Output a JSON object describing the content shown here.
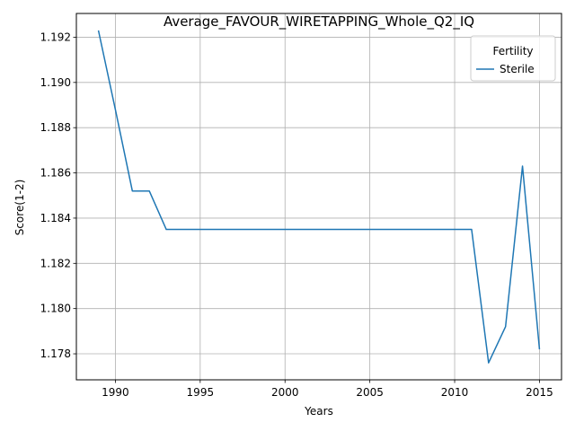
{
  "chart_data": {
    "type": "line",
    "title": "Average_FAVOUR_WIRETAPPING_Whole_Q2_IQ",
    "xlabel": "Years",
    "ylabel": "Score(1-2)",
    "xlim": [
      1987.7,
      1986.7
    ],
    "ylim": [
      1.17685,
      1.19305
    ],
    "xticks": [
      1990,
      1995,
      2000,
      2005,
      2010,
      2015
    ],
    "xtick_labels": [
      "1990",
      "1995",
      "2000",
      "2005",
      "2010",
      "2015"
    ],
    "yticks": [
      1.178,
      1.18,
      1.182,
      1.184,
      1.186,
      1.188,
      1.19,
      1.192
    ],
    "ytick_labels": [
      "1.178",
      "1.180",
      "1.182",
      "1.184",
      "1.186",
      "1.188",
      "1.190",
      "1.192"
    ],
    "grid": true,
    "legend": {
      "title": "Fertility",
      "placement": "top-right"
    },
    "series": [
      {
        "name": "Sterile",
        "color": "#1f77b4",
        "x": [
          1989,
          1990,
          1991,
          1992,
          1993,
          1994,
          1995,
          1996,
          1997,
          1998,
          1999,
          2000,
          2001,
          2002,
          2003,
          2004,
          2005,
          2006,
          2007,
          2008,
          2009,
          2010,
          2011,
          2012,
          2013,
          2014,
          2015
        ],
        "y": [
          1.1923,
          1.1888,
          1.1852,
          1.1852,
          1.1835,
          1.1835,
          1.1835,
          1.1835,
          1.1835,
          1.1835,
          1.1835,
          1.1835,
          1.1835,
          1.1835,
          1.1835,
          1.1835,
          1.1835,
          1.1835,
          1.1835,
          1.1835,
          1.1835,
          1.1835,
          1.1835,
          1.1776,
          1.1792,
          1.1863,
          1.1782
        ]
      }
    ]
  }
}
